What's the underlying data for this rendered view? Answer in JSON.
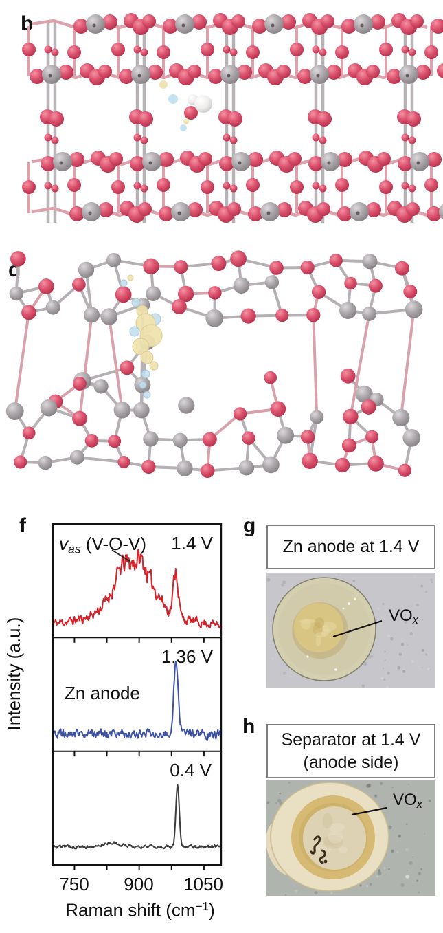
{
  "page": {
    "background": "#ffffff"
  },
  "panels": {
    "b": {
      "label": "b",
      "description": "crystalline vanadium-oxide lattice (side view) with intercalated water molecule and charge-density isosurfaces",
      "atom_colors": {
        "oxygen": "#d9506a",
        "metal": "#a9a5a9",
        "hydrogen": "#f4f2f0"
      },
      "isosurface_colors": {
        "positive": "#efe2ae",
        "negative": "#bfdfee"
      },
      "bond_colors": {
        "gray": "#b7b3b7",
        "pink": "#dda3ad"
      }
    },
    "d": {
      "label": "d",
      "description": "amorphous vanadium-oxide network with charge-density isosurface lobes",
      "atom_colors": {
        "oxygen": "#d9506a",
        "metal": "#a19da1"
      },
      "isosurface_colors": {
        "positive": "#efe2ae",
        "negative": "#c3dfed"
      }
    },
    "f": {
      "label": "f"
    },
    "g": {
      "label": "g",
      "title": "Zn anode at 1.4 V",
      "annotation": {
        "text": "VO",
        "sub": "x"
      },
      "photo_colors": {
        "background": "#c7c7cb",
        "disc_outer": "#d5cfb2",
        "disc_inner": "#d8c584",
        "disc_edge": "#83816f",
        "mottle_light": "#e7d9a2",
        "mottle_dark": "#c4ab61"
      }
    },
    "h": {
      "label": "h",
      "title_line1": "Separator at 1.4 V",
      "title_line2": "(anode side)",
      "annotation": {
        "text": "VO",
        "sub": "x"
      },
      "photo_colors": {
        "background": "#b0b4ae",
        "blob_outer": "#e9dfc2",
        "ring": "#d6ba74",
        "inner": "#ddd3b4",
        "marks": "#3c301c"
      }
    }
  },
  "chart_data": {
    "type": "line",
    "title": "",
    "ylabel": "Intensity (a.u.)",
    "xlabel_parts": {
      "pre": "Raman shift (cm",
      "sup": "−1",
      "post": ")"
    },
    "xlim": [
      700,
      1090
    ],
    "ylim_note": "intensity in arbitrary units, each spectrum normalized to its own sub-panel",
    "grid": false,
    "xticks_minor": [
      750,
      825,
      900,
      975,
      1050
    ],
    "xtick_labels": [
      "750",
      "900",
      "1050"
    ],
    "xtick_label_values": [
      750,
      900,
      1050
    ],
    "legend_position": "none",
    "panels": [
      {
        "name": "Zn anode charged to 1.4 V",
        "voltage_label": "1.4 V",
        "annotation_parts": {
          "symbol": "v",
          "sub": "as",
          "rest": " (V-O-V)"
        },
        "color": "#d5232b",
        "baseline": 0.09,
        "noise": 0.028,
        "signal_noise": true,
        "peaks": [
          {
            "center": 885,
            "fwhm": 95,
            "height": 0.44,
            "assignment": "vas(V-O-V) broad band"
          },
          {
            "center": 905,
            "fwhm": 25,
            "height": 0.09
          },
          {
            "center": 860,
            "fwhm": 25,
            "height": 0.07
          },
          {
            "center": 940,
            "fwhm": 40,
            "height": 0.05
          },
          {
            "center": 880,
            "fwhm": 280,
            "height": 0.11
          },
          {
            "center": 985,
            "fwhm": 13,
            "height": 0.42,
            "assignment": "sharp VOx peak"
          }
        ]
      },
      {
        "name": "Zn anode at 1.36 V",
        "voltage_label": "1.36 V",
        "text_label": "Zn anode",
        "color": "#3d52a5",
        "baseline": 0.15,
        "noise": 0.034,
        "signal_noise": false,
        "peaks": [
          {
            "center": 985,
            "fwhm": 11,
            "height": 0.62,
            "assignment": "sharp VOx peak"
          },
          {
            "center": 997,
            "fwhm": 25,
            "height": 0.06
          }
        ]
      },
      {
        "name": "Zn anode at 0.4 V",
        "voltage_label": "0.4 V",
        "color": "#3c3c3c",
        "baseline": 0.16,
        "noise": 0.012,
        "signal_noise": false,
        "peaks": [
          {
            "center": 989,
            "fwhm": 9,
            "height": 0.56,
            "assignment": "sharp VOx peak"
          },
          {
            "center": 840,
            "fwhm": 45,
            "height": 0.035
          }
        ]
      }
    ]
  }
}
